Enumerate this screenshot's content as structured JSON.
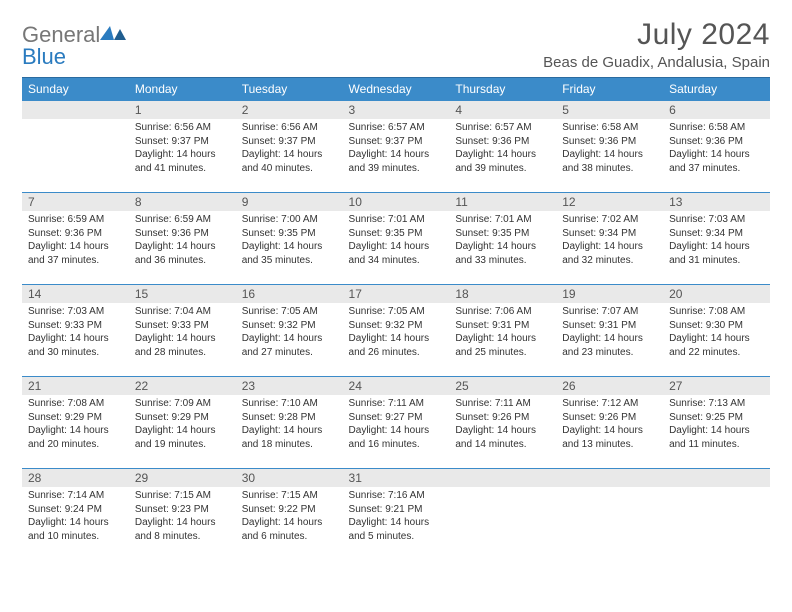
{
  "header": {
    "logo_gen": "General",
    "logo_blue": "Blue",
    "month": "July 2024",
    "location": "Beas de Guadix, Andalusia, Spain"
  },
  "colors": {
    "header_bg": "#3b8bc9",
    "header_border": "#2a6ba0",
    "daynum_bg": "#e9e9e9",
    "text": "#333333",
    "logo_blue": "#2a7bbf"
  },
  "weekdays": [
    "Sunday",
    "Monday",
    "Tuesday",
    "Wednesday",
    "Thursday",
    "Friday",
    "Saturday"
  ],
  "startOffset": 1,
  "days": [
    {
      "n": 1,
      "sunrise": "6:56 AM",
      "sunset": "9:37 PM",
      "daylight": "14 hours and 41 minutes."
    },
    {
      "n": 2,
      "sunrise": "6:56 AM",
      "sunset": "9:37 PM",
      "daylight": "14 hours and 40 minutes."
    },
    {
      "n": 3,
      "sunrise": "6:57 AM",
      "sunset": "9:37 PM",
      "daylight": "14 hours and 39 minutes."
    },
    {
      "n": 4,
      "sunrise": "6:57 AM",
      "sunset": "9:36 PM",
      "daylight": "14 hours and 39 minutes."
    },
    {
      "n": 5,
      "sunrise": "6:58 AM",
      "sunset": "9:36 PM",
      "daylight": "14 hours and 38 minutes."
    },
    {
      "n": 6,
      "sunrise": "6:58 AM",
      "sunset": "9:36 PM",
      "daylight": "14 hours and 37 minutes."
    },
    {
      "n": 7,
      "sunrise": "6:59 AM",
      "sunset": "9:36 PM",
      "daylight": "14 hours and 37 minutes."
    },
    {
      "n": 8,
      "sunrise": "6:59 AM",
      "sunset": "9:36 PM",
      "daylight": "14 hours and 36 minutes."
    },
    {
      "n": 9,
      "sunrise": "7:00 AM",
      "sunset": "9:35 PM",
      "daylight": "14 hours and 35 minutes."
    },
    {
      "n": 10,
      "sunrise": "7:01 AM",
      "sunset": "9:35 PM",
      "daylight": "14 hours and 34 minutes."
    },
    {
      "n": 11,
      "sunrise": "7:01 AM",
      "sunset": "9:35 PM",
      "daylight": "14 hours and 33 minutes."
    },
    {
      "n": 12,
      "sunrise": "7:02 AM",
      "sunset": "9:34 PM",
      "daylight": "14 hours and 32 minutes."
    },
    {
      "n": 13,
      "sunrise": "7:03 AM",
      "sunset": "9:34 PM",
      "daylight": "14 hours and 31 minutes."
    },
    {
      "n": 14,
      "sunrise": "7:03 AM",
      "sunset": "9:33 PM",
      "daylight": "14 hours and 30 minutes."
    },
    {
      "n": 15,
      "sunrise": "7:04 AM",
      "sunset": "9:33 PM",
      "daylight": "14 hours and 28 minutes."
    },
    {
      "n": 16,
      "sunrise": "7:05 AM",
      "sunset": "9:32 PM",
      "daylight": "14 hours and 27 minutes."
    },
    {
      "n": 17,
      "sunrise": "7:05 AM",
      "sunset": "9:32 PM",
      "daylight": "14 hours and 26 minutes."
    },
    {
      "n": 18,
      "sunrise": "7:06 AM",
      "sunset": "9:31 PM",
      "daylight": "14 hours and 25 minutes."
    },
    {
      "n": 19,
      "sunrise": "7:07 AM",
      "sunset": "9:31 PM",
      "daylight": "14 hours and 23 minutes."
    },
    {
      "n": 20,
      "sunrise": "7:08 AM",
      "sunset": "9:30 PM",
      "daylight": "14 hours and 22 minutes."
    },
    {
      "n": 21,
      "sunrise": "7:08 AM",
      "sunset": "9:29 PM",
      "daylight": "14 hours and 20 minutes."
    },
    {
      "n": 22,
      "sunrise": "7:09 AM",
      "sunset": "9:29 PM",
      "daylight": "14 hours and 19 minutes."
    },
    {
      "n": 23,
      "sunrise": "7:10 AM",
      "sunset": "9:28 PM",
      "daylight": "14 hours and 18 minutes."
    },
    {
      "n": 24,
      "sunrise": "7:11 AM",
      "sunset": "9:27 PM",
      "daylight": "14 hours and 16 minutes."
    },
    {
      "n": 25,
      "sunrise": "7:11 AM",
      "sunset": "9:26 PM",
      "daylight": "14 hours and 14 minutes."
    },
    {
      "n": 26,
      "sunrise": "7:12 AM",
      "sunset": "9:26 PM",
      "daylight": "14 hours and 13 minutes."
    },
    {
      "n": 27,
      "sunrise": "7:13 AM",
      "sunset": "9:25 PM",
      "daylight": "14 hours and 11 minutes."
    },
    {
      "n": 28,
      "sunrise": "7:14 AM",
      "sunset": "9:24 PM",
      "daylight": "14 hours and 10 minutes."
    },
    {
      "n": 29,
      "sunrise": "7:15 AM",
      "sunset": "9:23 PM",
      "daylight": "14 hours and 8 minutes."
    },
    {
      "n": 30,
      "sunrise": "7:15 AM",
      "sunset": "9:22 PM",
      "daylight": "14 hours and 6 minutes."
    },
    {
      "n": 31,
      "sunrise": "7:16 AM",
      "sunset": "9:21 PM",
      "daylight": "14 hours and 5 minutes."
    }
  ],
  "labels": {
    "sunrise": "Sunrise: ",
    "sunset": "Sunset: ",
    "daylight": "Daylight: "
  }
}
